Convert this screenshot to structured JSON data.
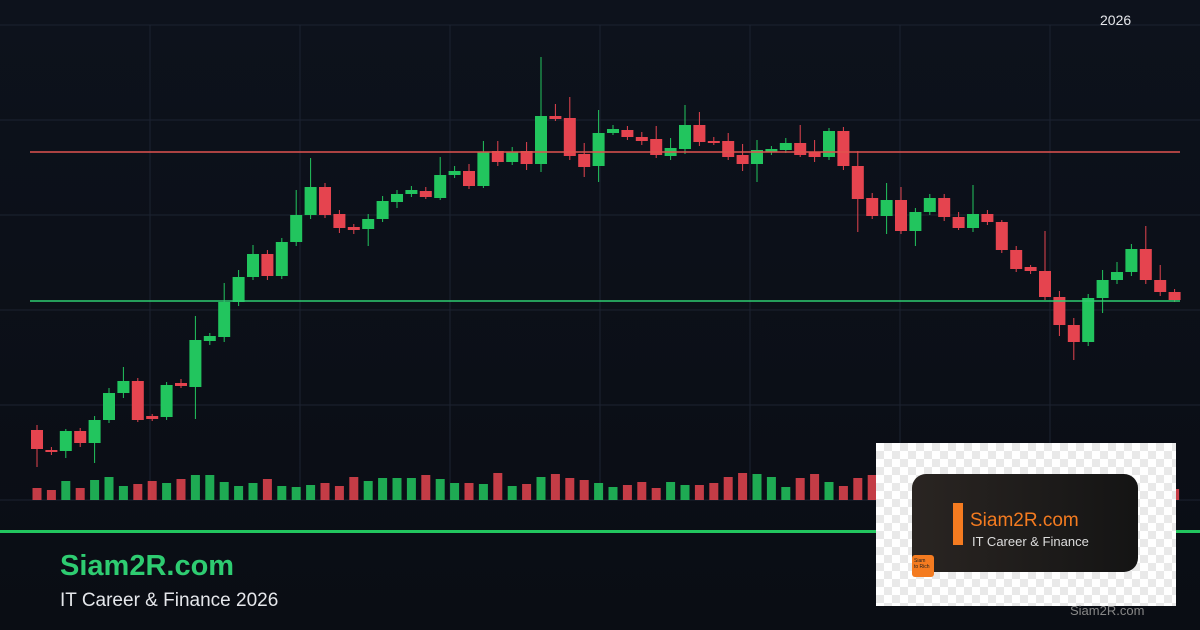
{
  "chart_data": {
    "type": "candlestick",
    "year_label": "2026",
    "open": [
      70,
      50,
      49,
      69,
      57,
      80,
      107,
      119,
      84,
      83,
      117,
      113,
      159,
      163,
      198,
      223,
      246,
      224,
      258,
      285,
      313,
      286,
      273,
      271,
      281,
      298,
      306,
      309,
      302,
      325,
      329,
      314,
      349,
      338,
      349,
      336,
      384,
      382,
      346,
      334,
      367,
      370,
      363,
      361,
      344,
      351,
      375,
      359,
      359,
      345,
      336,
      348,
      350,
      357,
      348,
      343,
      369,
      334,
      302,
      284,
      300,
      269,
      288,
      302,
      283,
      272,
      286,
      278,
      250,
      233,
      229,
      203,
      175,
      158,
      202,
      220,
      228,
      251,
      220,
      208
    ],
    "high": [
      75,
      53,
      71,
      72,
      84,
      112,
      133,
      122,
      86,
      118,
      121,
      184,
      167,
      217,
      230,
      255,
      250,
      262,
      310,
      342,
      317,
      290,
      276,
      286,
      304,
      310,
      314,
      313,
      343,
      334,
      336,
      359,
      359,
      353,
      358,
      443,
      396,
      403,
      357,
      390,
      375,
      374,
      368,
      374,
      362,
      395,
      388,
      363,
      367,
      356,
      360,
      354,
      362,
      375,
      360,
      372,
      373,
      349,
      307,
      317,
      313,
      292,
      306,
      306,
      288,
      315,
      290,
      280,
      254,
      235,
      269,
      209,
      182,
      206,
      230,
      238,
      256,
      274,
      235,
      211
    ],
    "low": [
      33,
      45,
      42,
      53,
      37,
      77,
      102,
      78,
      79,
      80,
      112,
      81,
      155,
      158,
      194,
      220,
      220,
      221,
      254,
      281,
      282,
      267,
      266,
      254,
      278,
      292,
      303,
      301,
      300,
      322,
      311,
      312,
      334,
      335,
      330,
      328,
      379,
      340,
      323,
      318,
      365,
      360,
      355,
      342,
      340,
      346,
      354,
      355,
      340,
      329,
      318,
      345,
      347,
      343,
      338,
      340,
      330,
      268,
      281,
      266,
      266,
      254,
      285,
      279,
      270,
      268,
      275,
      247,
      228,
      226,
      200,
      164,
      140,
      154,
      187,
      216,
      224,
      216,
      204,
      198
    ],
    "close": [
      51,
      48,
      69,
      57,
      80,
      107,
      119,
      80,
      81,
      115,
      114,
      160,
      164,
      198,
      223,
      246,
      224,
      258,
      285,
      313,
      285,
      272,
      270,
      281,
      299,
      306,
      310,
      303,
      325,
      329,
      314,
      348,
      338,
      348,
      336,
      384,
      381,
      344,
      333,
      367,
      371,
      363,
      359,
      345,
      352,
      375,
      358,
      357,
      343,
      336,
      350,
      351,
      357,
      345,
      343,
      369,
      334,
      301,
      284,
      300,
      269,
      288,
      302,
      283,
      272,
      286,
      278,
      250,
      231,
      229,
      203,
      175,
      158,
      202,
      220,
      228,
      251,
      220,
      208,
      200
    ],
    "volume": [
      12,
      10,
      19,
      12,
      20,
      23,
      14,
      16,
      19,
      17,
      21,
      25,
      25,
      18,
      14,
      17,
      21,
      14,
      13,
      15,
      17,
      14,
      23,
      19,
      22,
      22,
      22,
      25,
      21,
      17,
      17,
      16,
      27,
      14,
      16,
      23,
      26,
      22,
      20,
      17,
      13,
      15,
      18,
      12,
      18,
      15,
      15,
      17,
      23,
      27,
      26,
      23,
      13,
      22,
      26,
      18,
      14,
      22,
      25,
      14,
      16,
      19,
      17,
      20,
      15,
      18,
      22,
      16,
      14,
      20,
      24,
      18,
      21,
      19,
      17,
      16,
      15,
      20,
      13,
      11
    ],
    "up_color": "#22c55e",
    "down_color": "#e5444f",
    "ylim": [
      0,
      475
    ],
    "yticks": [
      0,
      95,
      190,
      285,
      380,
      475
    ],
    "volume_ylim": [
      0,
      100
    ],
    "grid": true,
    "levels": [
      {
        "value": 348,
        "color": "#e0524f"
      },
      {
        "value": 199,
        "color": "#2ecc71"
      }
    ]
  },
  "footer": {
    "title": "Siam2R.com",
    "subtitle": "IT Career & Finance 2026"
  },
  "logo": {
    "title": "Siam2R.com",
    "subtitle": "IT Career & Finance",
    "icon_lines": [
      "Siam",
      "to Rich"
    ],
    "watermark": "Siam2R.com"
  }
}
